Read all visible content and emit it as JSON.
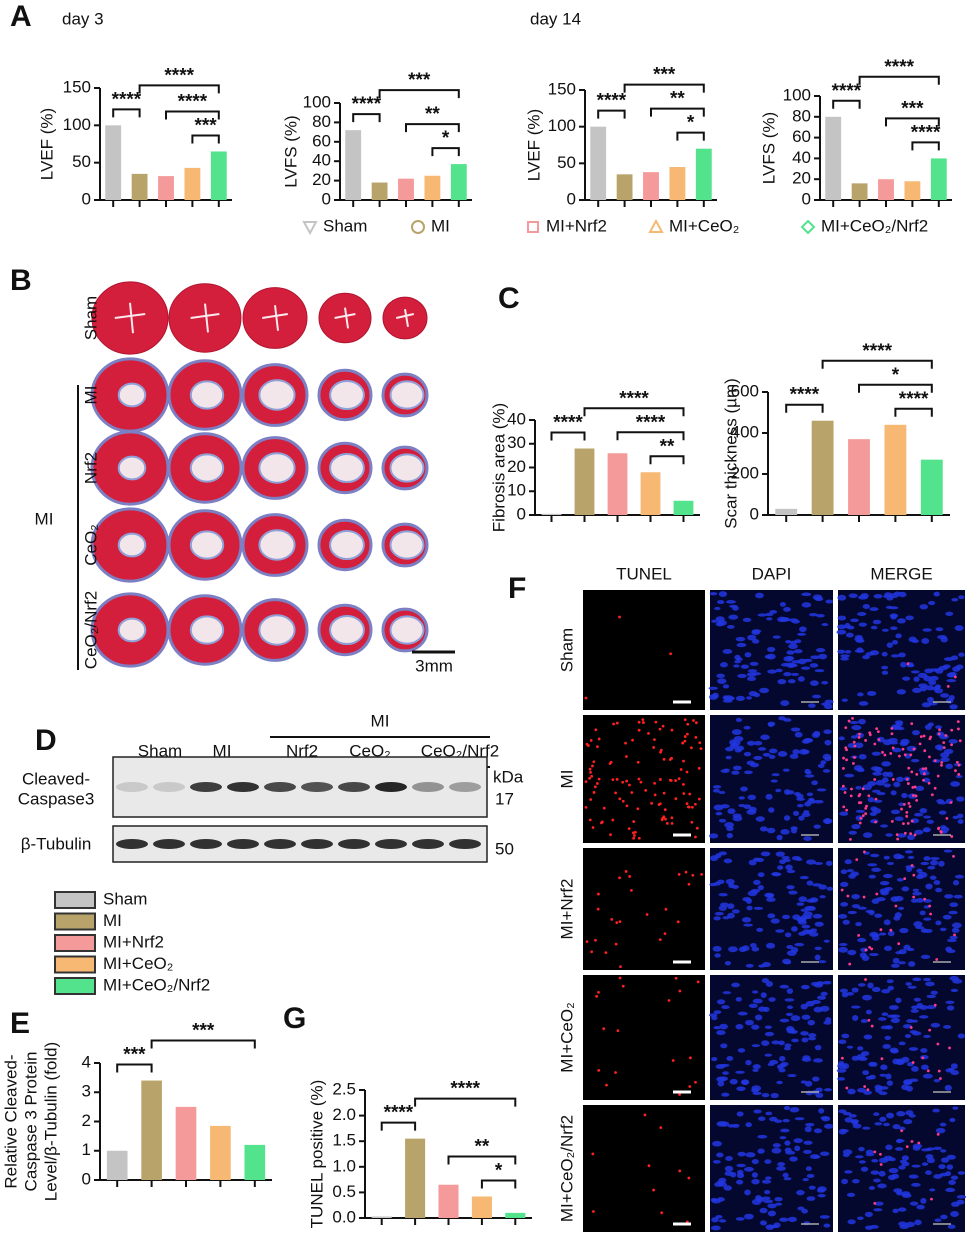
{
  "panel_labels": [
    "A",
    "B",
    "C",
    "D",
    "E",
    "F",
    "G"
  ],
  "day_labels": [
    "day 3",
    "day 14"
  ],
  "legend": {
    "names": [
      "Sham",
      "MI",
      "MI+Nrf2",
      "MI+CeO₂",
      "MI+CeO₂/Nrf2"
    ],
    "colors": [
      "#c4c4c4",
      "#b8a46a",
      "#f49a9a",
      "#f6b872",
      "#52e38c"
    ]
  },
  "chart_data": [
    {
      "type": "bar",
      "ylabel": "LVEF (%)",
      "values": [
        100,
        35,
        32,
        43,
        65
      ],
      "ylim": [
        0,
        150
      ],
      "yticks": [
        0,
        50,
        100,
        150
      ],
      "annotations": [
        {
          "text": "****",
          "pair": [
            0,
            1
          ]
        },
        {
          "text": "***",
          "pair": [
            3,
            4
          ]
        },
        {
          "text": "****",
          "pair": [
            2,
            4
          ]
        },
        {
          "text": "****",
          "pair": [
            1,
            4
          ]
        }
      ]
    },
    {
      "type": "bar",
      "ylabel": "LVFS (%)",
      "values": [
        72,
        18,
        22,
        25,
        37
      ],
      "ylim": [
        0,
        100
      ],
      "yticks": [
        0,
        20,
        40,
        60,
        80,
        100
      ],
      "annotations": [
        {
          "text": "****",
          "pair": [
            0,
            1
          ]
        },
        {
          "text": "*",
          "pair": [
            3,
            4
          ]
        },
        {
          "text": "**",
          "pair": [
            2,
            4
          ]
        },
        {
          "text": "***",
          "pair": [
            1,
            4
          ]
        }
      ]
    },
    {
      "type": "bar",
      "ylabel": "LVEF (%)",
      "values": [
        100,
        35,
        38,
        45,
        70
      ],
      "ylim": [
        0,
        150
      ],
      "yticks": [
        0,
        50,
        100,
        150
      ],
      "annotations": [
        {
          "text": "****",
          "pair": [
            0,
            1
          ]
        },
        {
          "text": "*",
          "pair": [
            3,
            4
          ]
        },
        {
          "text": "**",
          "pair": [
            2,
            4
          ]
        },
        {
          "text": "***",
          "pair": [
            1,
            4
          ]
        }
      ]
    },
    {
      "type": "bar",
      "ylabel": "LVFS (%)",
      "values": [
        80,
        16,
        20,
        18,
        40
      ],
      "ylim": [
        0,
        100
      ],
      "yticks": [
        0,
        20,
        40,
        60,
        80,
        100
      ],
      "annotations": [
        {
          "text": "****",
          "pair": [
            0,
            1
          ]
        },
        {
          "text": "****",
          "pair": [
            3,
            4
          ]
        },
        {
          "text": "***",
          "pair": [
            2,
            4
          ]
        },
        {
          "text": "****",
          "pair": [
            1,
            4
          ]
        }
      ]
    },
    {
      "type": "bar",
      "ylabel": "Fibrosis area (%)",
      "values": [
        0.5,
        28,
        26,
        18,
        6
      ],
      "ylim": [
        0,
        40
      ],
      "yticks": [
        0,
        10,
        20,
        30,
        40
      ],
      "annotations": [
        {
          "text": "****",
          "pair": [
            0,
            1
          ]
        },
        {
          "text": "**",
          "pair": [
            3,
            4
          ]
        },
        {
          "text": "****",
          "pair": [
            2,
            4
          ]
        },
        {
          "text": "****",
          "pair": [
            1,
            4
          ]
        }
      ]
    },
    {
      "type": "bar",
      "ylabel": "Scar thickness (µm)",
      "values": [
        30,
        460,
        370,
        440,
        270
      ],
      "ylim": [
        0,
        600
      ],
      "yticks": [
        0,
        200,
        400,
        600
      ],
      "annotations": [
        {
          "text": "****",
          "pair": [
            0,
            1
          ]
        },
        {
          "text": "****",
          "pair": [
            3,
            4
          ]
        },
        {
          "text": "*",
          "pair": [
            2,
            4
          ]
        },
        {
          "text": "****",
          "pair": [
            1,
            4
          ]
        }
      ]
    },
    {
      "type": "bar",
      "ylabel": [
        "Relative Cleaved-",
        "Caspase 3 Protein",
        "Level/β-Tubulin (fold)"
      ],
      "values": [
        1.0,
        3.4,
        2.5,
        1.85,
        1.2
      ],
      "ylim": [
        0,
        4
      ],
      "yticks": [
        0,
        1,
        2,
        3,
        4
      ],
      "annotations": [
        {
          "text": "***",
          "pair": [
            0,
            1
          ]
        },
        {
          "text": "***",
          "pair": [
            1,
            4
          ]
        }
      ]
    },
    {
      "type": "bar",
      "ylabel": "TUNEL positive (%)",
      "values": [
        0.03,
        1.55,
        0.65,
        0.42,
        0.1
      ],
      "ylim": [
        0,
        2.5
      ],
      "yticks": [
        {
          "value": 0,
          "label": "0.0"
        },
        0.5,
        {
          "value": 1,
          "label": "1.0"
        },
        1.5,
        {
          "value": 2,
          "label": "2.0"
        },
        2.5
      ],
      "annotations": [
        {
          "text": "****",
          "pair": [
            0,
            1
          ]
        },
        {
          "text": "*",
          "pair": [
            3,
            4
          ]
        },
        {
          "text": "**",
          "pair": [
            2,
            4
          ]
        },
        {
          "text": "****",
          "pair": [
            1,
            4
          ]
        }
      ]
    }
  ],
  "panel_b": {
    "rows": [
      "Sham",
      "MI",
      "Nrf2",
      "CeO₂",
      "CeO₂/Nrf2"
    ],
    "group": "MI",
    "scale": "3mm"
  },
  "panel_d": {
    "group": "MI",
    "lanes": [
      "Sham",
      "MI",
      "Nrf2",
      "CeO₂",
      "CeO₂/Nrf2"
    ],
    "rows": [
      {
        "label": [
          "Cleaved-",
          "Caspase3"
        ],
        "kda": 17
      },
      {
        "label": [
          "β-Tubulin"
        ],
        "kda": 50
      }
    ],
    "unit": "kDa"
  },
  "panel_f": {
    "columns": [
      "TUNEL",
      "DAPI",
      "MERGE"
    ],
    "rows": [
      "Sham",
      "MI",
      "MI+Nrf2",
      "MI+CeO₂",
      "MI+CeO₂/Nrf2"
    ]
  }
}
